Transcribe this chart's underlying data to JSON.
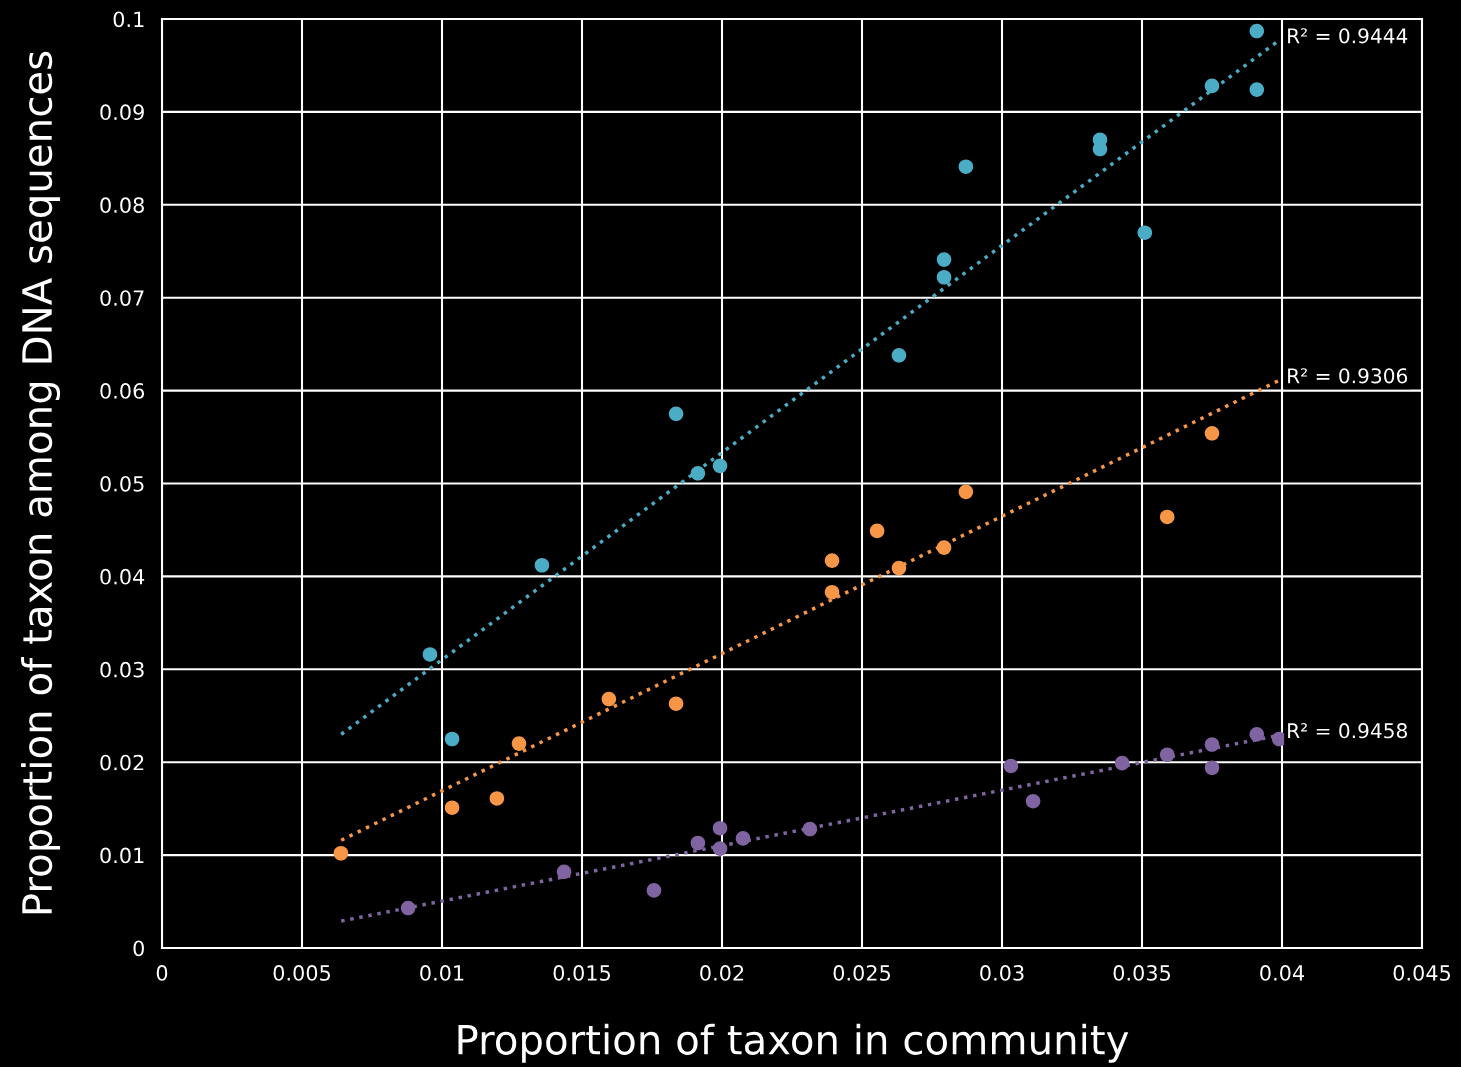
{
  "chart_data": {
    "type": "scatter",
    "xlabel": "Proportion of taxon in community",
    "ylabel": "Proportion of taxon among DNA sequences",
    "xlim": [
      0,
      0.045
    ],
    "ylim": [
      0,
      0.1
    ],
    "xticks": [
      0,
      0.005,
      0.01,
      0.015,
      0.02,
      0.025,
      0.03,
      0.035,
      0.04,
      0.045
    ],
    "yticks": [
      0,
      0.01,
      0.02,
      0.03,
      0.04,
      0.05,
      0.06,
      0.07,
      0.08,
      0.09,
      0.1
    ],
    "grid": true,
    "marker": "circle",
    "legend": false,
    "series": [
      {
        "color": "#4bacc6",
        "x": [
          0.00957,
          0.01036,
          0.01357,
          0.01836,
          0.01914,
          0.01993,
          0.02632,
          0.02793,
          0.02793,
          0.02871,
          0.0335,
          0.0335,
          0.0351,
          0.0375,
          0.0391,
          0.0391
        ],
        "values": [
          0.0316,
          0.0225,
          0.0412,
          0.0575,
          0.0511,
          0.0519,
          0.0638,
          0.0741,
          0.0722,
          0.0841,
          0.087,
          0.086,
          0.077,
          0.0928,
          0.0987,
          0.0924
        ]
      },
      {
        "color": "#f79646",
        "x": [
          0.00639,
          0.01036,
          0.01196,
          0.01275,
          0.01596,
          0.01836,
          0.02393,
          0.02393,
          0.02554,
          0.02632,
          0.02793,
          0.02871,
          0.0359,
          0.0375
        ],
        "values": [
          0.0102,
          0.0151,
          0.0161,
          0.022,
          0.0268,
          0.0263,
          0.0417,
          0.0383,
          0.0449,
          0.0409,
          0.0431,
          0.0491,
          0.0464,
          0.0554
        ]
      },
      {
        "color": "#8064a2",
        "x": [
          0.00879,
          0.01436,
          0.01757,
          0.01914,
          0.01993,
          0.01993,
          0.02075,
          0.02314,
          0.03032,
          0.03111,
          0.03429,
          0.0359,
          0.0375,
          0.0375,
          0.0391,
          0.0399
        ],
        "values": [
          0.0043,
          0.0082,
          0.0062,
          0.0113,
          0.0129,
          0.0107,
          0.0118,
          0.0128,
          0.0196,
          0.0158,
          0.0199,
          0.0208,
          0.0219,
          0.0194,
          0.023,
          0.0225
        ]
      },
      {
        "type": "line",
        "marker": "none",
        "line_style": "dotted",
        "color": "#4bacc6",
        "x": [
          0.0064,
          0.0399
        ],
        "values": [
          0.023,
          0.0977
        ]
      },
      {
        "type": "line",
        "marker": "none",
        "line_style": "dotted",
        "color": "#f79646",
        "x": [
          0.0064,
          0.0399
        ],
        "values": [
          0.0116,
          0.0611
        ]
      },
      {
        "type": "line",
        "marker": "none",
        "line_style": "dotted",
        "color": "#8064a2",
        "x": [
          0.0064,
          0.0399
        ],
        "values": [
          0.0029,
          0.0229
        ]
      }
    ],
    "annotations": [
      "R² = 0.9444",
      "R² = 0.9306",
      "R² = 0.9458"
    ]
  }
}
